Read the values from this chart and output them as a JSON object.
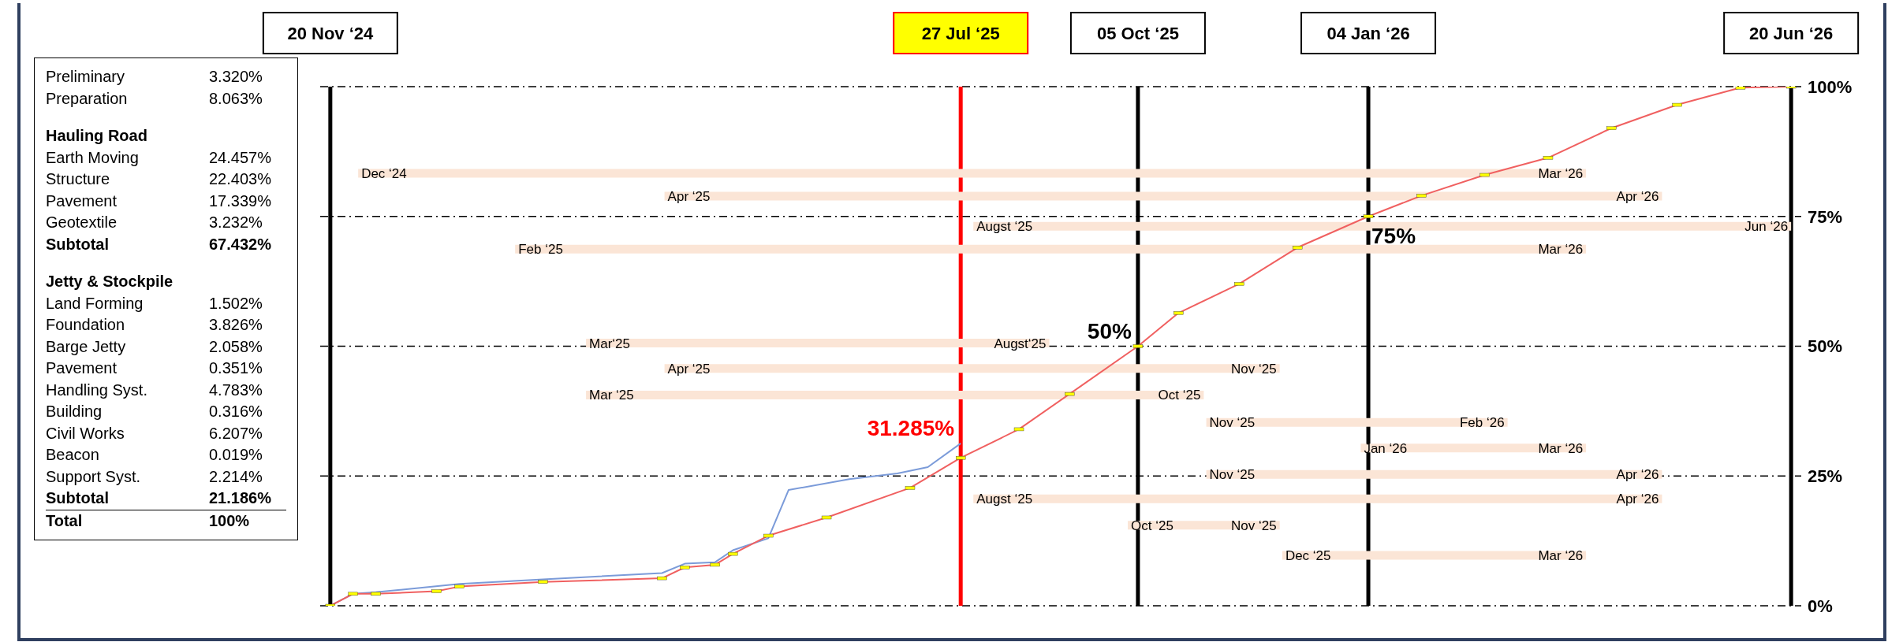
{
  "chart_data": [
    {
      "type": "other",
      "categories": [
        "Preliminary",
        "Preparation",
        "Hauling Road",
        "Earth Moving",
        "Structure",
        "Pavement",
        "Geotextile",
        "Subtotal",
        "Jetty & Stockpile",
        "Land Forming",
        "Foundation",
        "Barge Jetty",
        "Pavement",
        "Handling Syst.",
        "Building",
        "Civil Works",
        "Beacon",
        "Support Syst.",
        "Subtotal",
        "Total"
      ],
      "value_labels": [
        "3.320%",
        "8.063%",
        null,
        "24.457%",
        "22.403%",
        "17.339%",
        "3.232%",
        "67.432%",
        null,
        "1.502%",
        "3.826%",
        "2.058%",
        "0.351%",
        "4.783%",
        "0.316%",
        "6.207%",
        "0.019%",
        "2.214%",
        "21.186%",
        "100%"
      ]
    },
    {
      "type": "line",
      "xlim": [
        "2024-11-16",
        "2026-06-24"
      ],
      "ylim": [
        0,
        100
      ],
      "xticks": [
        {
          "value": "2024-11-20",
          "label": "20 Nov ‘24"
        },
        {
          "value": "2025-07-27",
          "label": "27 Jul ‘25"
        },
        {
          "value": "2025-10-05",
          "label": "05 Oct ‘25"
        },
        {
          "value": "2026-01-04",
          "label": "04 Jan ‘26"
        },
        {
          "value": "2026-06-20",
          "label": "20 Jun ‘26"
        }
      ],
      "yticks": [
        {
          "value": 0,
          "label": "0%"
        },
        {
          "value": 25,
          "label": "25%"
        },
        {
          "value": 50,
          "label": "50%"
        },
        {
          "value": 75,
          "label": "75%"
        },
        {
          "value": 100,
          "label": "100%"
        }
      ],
      "grid": "y",
      "series": [
        {
          "color": "#fbe5d6",
          "marker": "none",
          "x": [
            "2024-12-01",
            "2026-03-31"
          ],
          "values": [
            83.3,
            83.3
          ],
          "value_labels": [
            "Dec ‘24",
            "Mar ‘26"
          ]
        },
        {
          "color": "#fbe5d6",
          "marker": "none",
          "x": [
            "2025-04-01",
            "2026-04-30"
          ],
          "values": [
            78.9,
            78.9
          ],
          "value_labels": [
            "Apr ‘25",
            "Apr ‘26"
          ]
        },
        {
          "color": "#fbe5d6",
          "marker": "none",
          "x": [
            "2025-08-01",
            "2026-06-20"
          ],
          "values": [
            73.1,
            73.1
          ],
          "value_labels": [
            "Augst ‘25",
            "Jun ‘26"
          ]
        },
        {
          "color": "#fbe5d6",
          "marker": "none",
          "x": [
            "2025-02-01",
            "2026-03-31"
          ],
          "values": [
            68.7,
            68.7
          ],
          "value_labels": [
            "Feb ‘25",
            "Mar ‘26"
          ]
        },
        {
          "color": "#fbe5d6",
          "marker": "none",
          "x": [
            "2025-03-01",
            "2025-08-31"
          ],
          "values": [
            50.6,
            50.6
          ],
          "value_labels": [
            "Mar‘25",
            "Augst‘25"
          ]
        },
        {
          "color": "#fbe5d6",
          "marker": "none",
          "x": [
            "2025-04-01",
            "2025-11-30"
          ],
          "values": [
            45.7,
            45.7
          ],
          "value_labels": [
            "Apr ‘25",
            "Nov ‘25"
          ]
        },
        {
          "color": "#fbe5d6",
          "marker": "none",
          "x": [
            "2025-03-01",
            "2025-10-31"
          ],
          "values": [
            40.6,
            40.6
          ],
          "value_labels": [
            "Mar ‘25",
            "Oct ‘25"
          ]
        },
        {
          "color": "#fbe5d6",
          "marker": "none",
          "x": [
            "2025-11-01",
            "2026-02-28"
          ],
          "values": [
            35.3,
            35.3
          ],
          "value_labels": [
            "Nov ‘25",
            "Feb ‘26"
          ]
        },
        {
          "color": "#fbe5d6",
          "marker": "none",
          "x": [
            "2026-01-01",
            "2026-03-31"
          ],
          "values": [
            30.4,
            30.4
          ],
          "value_labels": [
            "Jan ‘26",
            "Mar ‘26"
          ]
        },
        {
          "color": "#fbe5d6",
          "marker": "none",
          "x": [
            "2025-11-01",
            "2026-04-30"
          ],
          "values": [
            25.3,
            25.3
          ],
          "value_labels": [
            "Nov ‘25",
            "Apr ‘26"
          ]
        },
        {
          "color": "#fbe5d6",
          "marker": "none",
          "x": [
            "2025-08-01",
            "2026-04-30"
          ],
          "values": [
            20.6,
            20.6
          ],
          "value_labels": [
            "Augst ‘25",
            "Apr ‘26"
          ]
        },
        {
          "color": "#fbe5d6",
          "marker": "none",
          "x": [
            "2025-10-01",
            "2025-11-30"
          ],
          "values": [
            15.5,
            15.5
          ],
          "value_labels": [
            "Oct ‘25",
            "Nov ‘25"
          ]
        },
        {
          "color": "#fbe5d6",
          "marker": "none",
          "x": [
            "2025-12-01",
            "2026-03-31"
          ],
          "values": [
            9.7,
            9.7
          ],
          "value_labels": [
            "Dec ‘25",
            "Mar ‘26"
          ]
        },
        {
          "color": "#7b9bd9",
          "marker": "none",
          "x": [
            "2024-11-20",
            "2024-11-29",
            "2024-12-08",
            "2025-01-10",
            "2025-02-12",
            "2025-03-31",
            "2025-04-09",
            "2025-04-21",
            "2025-04-28",
            "2025-05-12",
            "2025-05-20",
            "2025-06-13",
            "2025-07-02",
            "2025-07-14",
            "2025-07-27"
          ],
          "values": [
            0,
            2.3,
            2.6,
            4.2,
            5.1,
            6.3,
            8.1,
            8.4,
            10.7,
            13,
            22.3,
            24.4,
            25.5,
            26.7,
            31.285
          ]
        },
        {
          "color": "#f06060",
          "marker": "square",
          "x": [
            "2024-11-20",
            "2024-11-29",
            "2024-12-08",
            "2025-01-01",
            "2025-01-10",
            "2025-02-12",
            "2025-03-31",
            "2025-04-09",
            "2025-04-21",
            "2025-04-28",
            "2025-05-12",
            "2025-06-04",
            "2025-07-07",
            "2025-07-27",
            "2025-08-19",
            "2025-09-08",
            "2025-10-05",
            "2025-10-21",
            "2025-11-14",
            "2025-12-07",
            "2026-01-04",
            "2026-01-25",
            "2026-02-19",
            "2026-03-16",
            "2026-04-10",
            "2026-05-06",
            "2026-05-31",
            "2026-06-20"
          ],
          "values": [
            0,
            2.3,
            2.3,
            2.8,
            3.7,
            4.6,
            5.3,
            7.4,
            7.9,
            10,
            13.5,
            17,
            22.7,
            28.5,
            34,
            40.8,
            50,
            56.4,
            62,
            69,
            75,
            79,
            83,
            86.3,
            92,
            96.5,
            99.8,
            100
          ]
        }
      ],
      "ref_lines": [
        {
          "axis": "x",
          "value": "2024-11-20",
          "color": "#000000"
        },
        {
          "axis": "x",
          "value": "2025-07-27",
          "color": "#ff0000"
        },
        {
          "axis": "x",
          "value": "2025-10-05",
          "color": "#000000"
        },
        {
          "axis": "x",
          "value": "2026-01-04",
          "color": "#000000"
        },
        {
          "axis": "x",
          "value": "2026-06-20",
          "color": "#000000"
        }
      ],
      "annotations": [
        {
          "text": "31.285%",
          "x": "2025-07-27",
          "y": 31.285
        },
        {
          "text": "50%",
          "x": "2025-10-05",
          "y": 50
        },
        {
          "text": "75%",
          "x": "2026-01-04",
          "y": 75
        }
      ]
    }
  ]
}
